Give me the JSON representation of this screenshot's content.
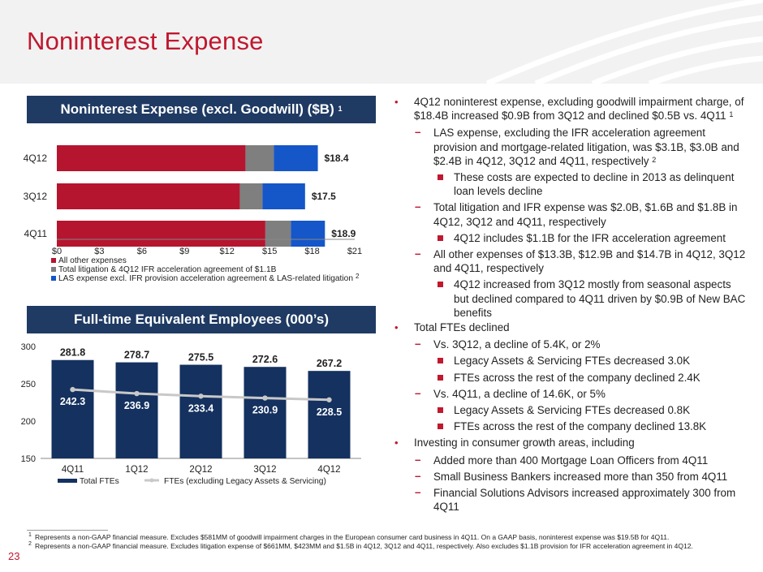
{
  "header": {
    "title": "Noninterest Expense"
  },
  "page_number": "23",
  "chart_data": [
    {
      "type": "bar",
      "orientation": "horizontal",
      "stacked": true,
      "title": "Noninterest Expense (excl. Goodwill) ($B)",
      "title_footnote": "1",
      "categories": [
        "4Q12",
        "3Q12",
        "4Q11"
      ],
      "series": [
        {
          "name": "All other expenses",
          "color": "#b5152f",
          "values": [
            13.3,
            12.9,
            14.7
          ]
        },
        {
          "name": "Total litigation & 4Q12 IFR acceleration agreement of $1.1B",
          "color": "#7f7f7f",
          "values": [
            2.0,
            1.6,
            1.8
          ]
        },
        {
          "name": "LAS expense excl. IFR provision acceleration agreement & LAS-related litigation",
          "color": "#1556c9",
          "values": [
            3.1,
            3.0,
            2.4
          ]
        }
      ],
      "totals": [
        "$18.4",
        "$17.5",
        "$18.9"
      ],
      "xlim": [
        0,
        21
      ],
      "xticks": [
        "$0",
        "$3",
        "$6",
        "$9",
        "$12",
        "$15",
        "$18",
        "$21"
      ],
      "legend_footnote": "2",
      "legend_position": "bottom"
    },
    {
      "type": "bar",
      "title": "Full-time Equivalent Employees (000’s)",
      "categories": [
        "4Q11",
        "1Q12",
        "2Q12",
        "3Q12",
        "4Q12"
      ],
      "series": [
        {
          "name": "Total FTEs",
          "type": "bar",
          "color": "#14315f",
          "values": [
            281.8,
            278.7,
            275.5,
            272.6,
            267.2
          ],
          "labels": [
            "281.8",
            "278.7",
            "275.5",
            "272.6",
            "267.2"
          ]
        },
        {
          "name": "FTEs (excluding Legacy Assets & Servicing)",
          "type": "line",
          "color": "#c8c8c8",
          "values": [
            242.3,
            236.9,
            233.4,
            230.9,
            228.5
          ],
          "labels": [
            "242.3",
            "236.9",
            "233.4",
            "230.9",
            "228.5"
          ]
        }
      ],
      "ylim": [
        150,
        300
      ],
      "yticks": [
        "150",
        "200",
        "250",
        "300"
      ],
      "legend_position": "bottom"
    }
  ],
  "bullets_top": [
    {
      "level": 1,
      "text": "4Q12 noninterest expense, excluding goodwill impairment charge, of $18.4B increased $0.9B from 3Q12 and declined $0.5B vs. 4Q11",
      "sup": "1"
    },
    {
      "level": 2,
      "text": "LAS expense, excluding the IFR acceleration agreement provision and mortgage-related litigation, was $3.1B, $3.0B and $2.4B in 4Q12, 3Q12 and 4Q11, respectively",
      "sup": "2"
    },
    {
      "level": 3,
      "text": "These costs are expected to decline in 2013 as delinquent loan levels decline"
    },
    {
      "level": 2,
      "text": "Total litigation and IFR expense was $2.0B, $1.6B and $1.8B in 4Q12, 3Q12 and 4Q11, respectively"
    },
    {
      "level": 3,
      "text": "4Q12 includes $1.1B for the IFR acceleration agreement"
    },
    {
      "level": 2,
      "text": "All other expenses of $13.3B, $12.9B and $14.7B in 4Q12, 3Q12 and 4Q11, respectively"
    },
    {
      "level": 3,
      "text": "4Q12 increased from 3Q12 mostly from seasonal aspects but declined compared to 4Q11 driven by $0.9B of New BAC benefits"
    }
  ],
  "bullets_bottom": [
    {
      "level": 1,
      "text": "Total FTEs declined"
    },
    {
      "level": 2,
      "text": "Vs. 3Q12, a decline of 5.4K, or 2%"
    },
    {
      "level": 3,
      "text": "Legacy Assets & Servicing FTEs decreased 3.0K"
    },
    {
      "level": 3,
      "text": "FTEs across the rest of the company declined 2.4K"
    },
    {
      "level": 2,
      "text": "Vs. 4Q11, a decline of 14.6K, or 5%"
    },
    {
      "level": 3,
      "text": "Legacy Assets & Servicing FTEs decreased 0.8K"
    },
    {
      "level": 3,
      "text": "FTEs across the rest of the company declined 13.8K"
    },
    {
      "level": 1,
      "text": "Investing in consumer growth areas, including"
    },
    {
      "level": 2,
      "text": "Added more than 400 Mortgage Loan Officers from 4Q11"
    },
    {
      "level": 2,
      "text": "Small Business Bankers increased more than 350 from 4Q11"
    },
    {
      "level": 2,
      "text": "Financial Solutions Advisors increased approximately 300 from 4Q11"
    }
  ],
  "footnotes": [
    {
      "num": "1",
      "text": "Represents a non-GAAP financial measure. Excludes $581MM of goodwill impairment charges in the European consumer card business in 4Q11. On a GAAP basis, noninterest expense was $19.5B for 4Q11."
    },
    {
      "num": "2",
      "text": "Represents a non-GAAP financial measure. Excludes litigation expense of $661MM, $423MM and $1.5B in 4Q12, 3Q12 and 4Q11, respectively. Also excludes $1.1B provision for IFR acceleration agreement in 4Q12."
    }
  ]
}
